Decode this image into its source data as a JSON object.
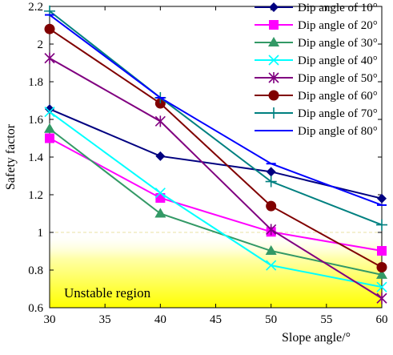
{
  "chart_data": {
    "type": "line",
    "xlabel": "Slope angle/°",
    "ylabel": "Safety factor",
    "xlim": [
      30,
      60
    ],
    "ylim": [
      0.6,
      2.2
    ],
    "x": [
      30,
      40,
      50,
      60
    ],
    "xticks": [
      "30",
      "35",
      "40",
      "45",
      "50",
      "55",
      "60"
    ],
    "yticks": [
      "0.6",
      "0.8",
      "1",
      "1.2",
      "1.4",
      "1.6",
      "1.8",
      "2",
      "2.2"
    ],
    "legend_position": "top-right",
    "unstable_region": {
      "label": "Unstable region",
      "ymax": 1.0,
      "color": "#ffff00"
    },
    "series": [
      {
        "name": "Dip angle of 10°",
        "color": "#000080",
        "marker": "diamond",
        "values": [
          1.655,
          1.405,
          1.322,
          1.18
        ]
      },
      {
        "name": "Dip angle of 20°",
        "color": "#ff00ff",
        "marker": "square",
        "values": [
          1.5,
          1.183,
          1.003,
          0.902
        ]
      },
      {
        "name": "Dip angle of 30°",
        "color": "#339966",
        "marker": "triangle",
        "values": [
          1.55,
          1.1,
          0.902,
          0.775
        ]
      },
      {
        "name": "Dip angle of 40°",
        "color": "#00ffff",
        "marker": "x",
        "values": [
          1.64,
          1.21,
          0.825,
          0.71
        ]
      },
      {
        "name": "Dip angle of 50°",
        "color": "#800080",
        "marker": "asterisk",
        "values": [
          1.925,
          1.59,
          1.015,
          0.65
        ]
      },
      {
        "name": "Dip angle of 60°",
        "color": "#800000",
        "marker": "circle",
        "values": [
          2.08,
          1.685,
          1.14,
          0.815
        ]
      },
      {
        "name": "Dip angle of 70°",
        "color": "#008080",
        "marker": "plus",
        "values": [
          2.175,
          1.715,
          1.27,
          1.04
        ]
      },
      {
        "name": "Dip angle of 80°",
        "color": "#0000ff",
        "marker": "dash",
        "values": [
          2.155,
          1.715,
          1.365,
          1.145
        ]
      }
    ]
  }
}
